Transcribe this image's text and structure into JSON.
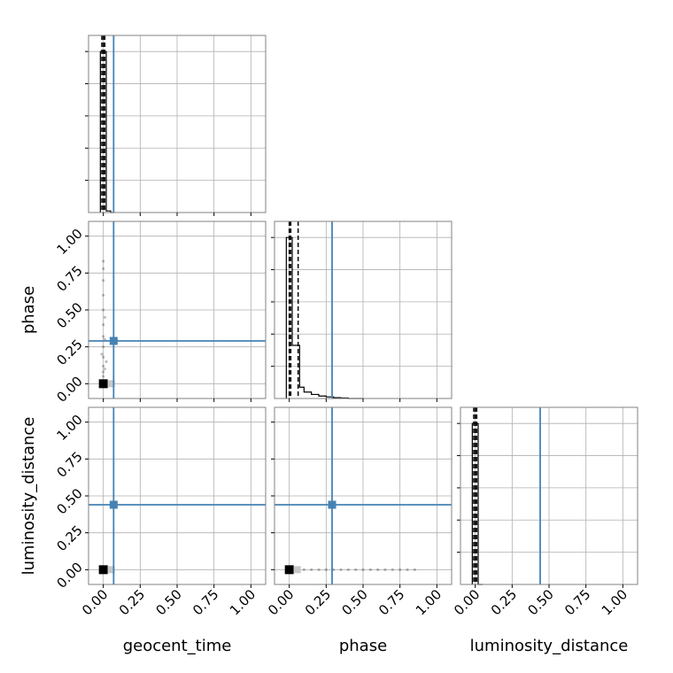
{
  "chart_data": {
    "type": "corner",
    "parameters": [
      "geocent_time",
      "phase",
      "luminosity_distance"
    ],
    "axis_labels": {
      "x": [
        "geocent_time",
        "phase",
        "luminosity_distance"
      ],
      "y": [
        "phase",
        "luminosity_distance"
      ]
    },
    "axis_range": [
      -0.1,
      1.1
    ],
    "tick_values": [
      0.0,
      0.25,
      0.5,
      0.75,
      1.0
    ],
    "tick_labels": [
      "0.00",
      "0.25",
      "0.50",
      "0.75",
      "1.00"
    ],
    "truths": {
      "geocent_time": 0.07,
      "phase": 0.29,
      "luminosity_distance": 0.44
    },
    "truth_color": "#4682b4",
    "quantile_lines": {
      "geocent_time": [
        -0.01,
        0.0,
        0.01
      ],
      "phase": [
        0.0,
        0.01,
        0.06
      ],
      "luminosity_distance": [
        -0.01,
        0.0,
        0.01
      ]
    },
    "histograms": {
      "geocent_time": {
        "edges": [
          -0.02,
          0.0,
          0.02,
          0.05,
          0.07
        ],
        "heights": [
          1.0,
          1.0,
          0.01,
          0.0
        ]
      },
      "phase": {
        "edges": [
          -0.02,
          0.0,
          0.02,
          0.05,
          0.07,
          0.1,
          0.15,
          0.2,
          0.25,
          0.3,
          0.35,
          0.4,
          0.5
        ],
        "heights": [
          1.0,
          1.0,
          0.33,
          0.33,
          0.07,
          0.04,
          0.025,
          0.015,
          0.01,
          0.005,
          0.003,
          0.0
        ]
      },
      "luminosity_distance": {
        "edges": [
          -0.02,
          0.0,
          0.02,
          0.05
        ],
        "heights": [
          1.0,
          1.0,
          0.0
        ]
      }
    },
    "scatter": {
      "phase_vs_geocent_time": [
        [
          0.0,
          0.0
        ],
        [
          0.0,
          0.02
        ],
        [
          0.0,
          0.05
        ],
        [
          0.0,
          0.08
        ],
        [
          0.0,
          0.12
        ],
        [
          0.0,
          0.18
        ],
        [
          0.0,
          0.25
        ],
        [
          0.0,
          0.32
        ],
        [
          0.0,
          0.4
        ],
        [
          0.0,
          0.5
        ],
        [
          0.0,
          0.6
        ],
        [
          0.0,
          0.7
        ],
        [
          0.0,
          0.78
        ],
        [
          0.0,
          0.83
        ],
        [
          0.01,
          0.1
        ],
        [
          0.01,
          0.3
        ],
        [
          0.01,
          0.45
        ],
        [
          -0.01,
          0.2
        ],
        [
          0.02,
          0.15
        ]
      ],
      "luminosity_distance_vs_phase": [
        [
          0.0,
          0.0
        ],
        [
          0.05,
          0.0
        ],
        [
          0.1,
          0.0
        ],
        [
          0.15,
          0.0
        ],
        [
          0.2,
          0.0
        ],
        [
          0.25,
          0.0
        ],
        [
          0.3,
          0.0
        ],
        [
          0.35,
          0.0
        ],
        [
          0.4,
          0.0
        ],
        [
          0.45,
          0.0
        ],
        [
          0.5,
          0.0
        ],
        [
          0.55,
          0.0
        ],
        [
          0.6,
          0.0
        ],
        [
          0.65,
          0.0
        ],
        [
          0.7,
          0.0
        ],
        [
          0.75,
          0.0
        ],
        [
          0.8,
          0.0
        ],
        [
          0.85,
          0.0
        ]
      ],
      "luminosity_distance_vs_geocent_time": [
        [
          0.0,
          0.0
        ],
        [
          0.01,
          0.0
        ],
        [
          0.02,
          0.0
        ],
        [
          -0.01,
          0.0
        ]
      ]
    },
    "grid": true
  }
}
